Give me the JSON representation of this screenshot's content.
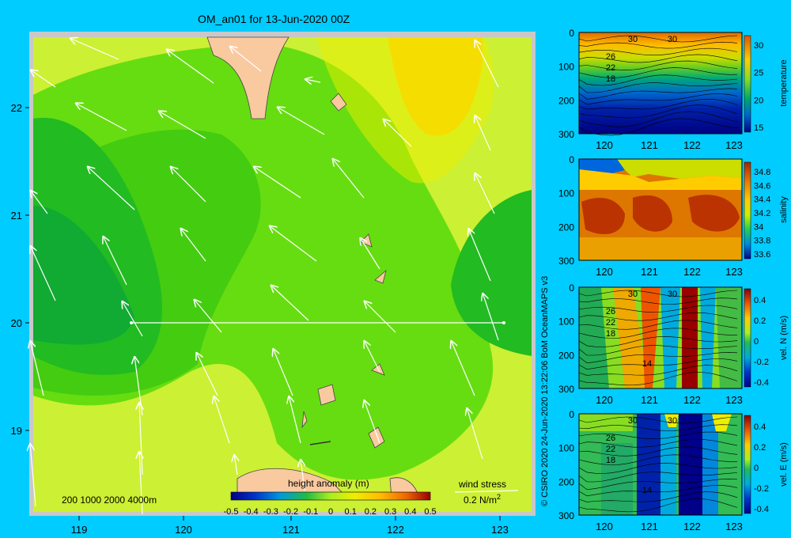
{
  "title": "OM_an01 for 13-Jun-2020 00Z",
  "credit": "© CSIRO 2020  24-Jun-2020 13:22:06 BoM OceanMAPS v3",
  "colors": {
    "background": "#00ccff",
    "land": "#f9c9a0",
    "frame": "#c8c8c8"
  },
  "map": {
    "type": "contour-map",
    "x_ticks": [
      "119",
      "120",
      "121",
      "122",
      "123"
    ],
    "y_ticks": [
      "22",
      "21",
      "20",
      "19"
    ],
    "bathymetry_legend": "200  1000  2000  4000m",
    "colorbar": {
      "label": "height anomaly (m)",
      "ticks": [
        "-0.5",
        "-0.4",
        "-0.3",
        "-0.2",
        "-0.1",
        "0",
        "0.1",
        "0.2",
        "0.3",
        "0.4",
        "0.5"
      ],
      "range": [
        -0.5,
        0.5
      ]
    },
    "wind_stress": {
      "label": "wind stress",
      "scale": "0.2 N/m",
      "exp": "2"
    },
    "section_line": {
      "lat": 20,
      "lon_start": 119.5,
      "lon_end": 123.2
    }
  },
  "panels": [
    {
      "name": "temperature",
      "label": "temperature",
      "y_ticks": [
        "0",
        "100",
        "200",
        "300"
      ],
      "x_ticks": [
        "120",
        "121",
        "122",
        "123"
      ],
      "cbar_ticks": [
        "30",
        "25",
        "20",
        "15"
      ],
      "contour_labels": [
        "30",
        "30",
        "26",
        "22",
        "18"
      ]
    },
    {
      "name": "salinity",
      "label": "salinity",
      "y_ticks": [
        "0",
        "100",
        "200",
        "300"
      ],
      "x_ticks": [
        "120",
        "121",
        "122",
        "123"
      ],
      "cbar_ticks": [
        "34.8",
        "34.6",
        "34.4",
        "34.2",
        "34",
        "33.8",
        "33.6"
      ],
      "contour_labels": []
    },
    {
      "name": "vel-n",
      "label": "vel. N (m/s)",
      "y_ticks": [
        "0",
        "100",
        "200",
        "300"
      ],
      "x_ticks": [
        "120",
        "121",
        "122",
        "123"
      ],
      "cbar_ticks": [
        "0.4",
        "0.2",
        "0",
        "-0.2",
        "-0.4"
      ],
      "contour_labels": [
        "30",
        "30",
        "26",
        "22",
        "18",
        "14"
      ]
    },
    {
      "name": "vel-e",
      "label": "vel. E (m/s)",
      "y_ticks": [
        "0",
        "100",
        "200",
        "300"
      ],
      "x_ticks": [
        "120",
        "121",
        "122",
        "123"
      ],
      "cbar_ticks": [
        "0.4",
        "0.2",
        "0",
        "-0.2",
        "-0.4"
      ],
      "contour_labels": [
        "30",
        "30",
        "26",
        "22",
        "18",
        "14"
      ]
    }
  ]
}
